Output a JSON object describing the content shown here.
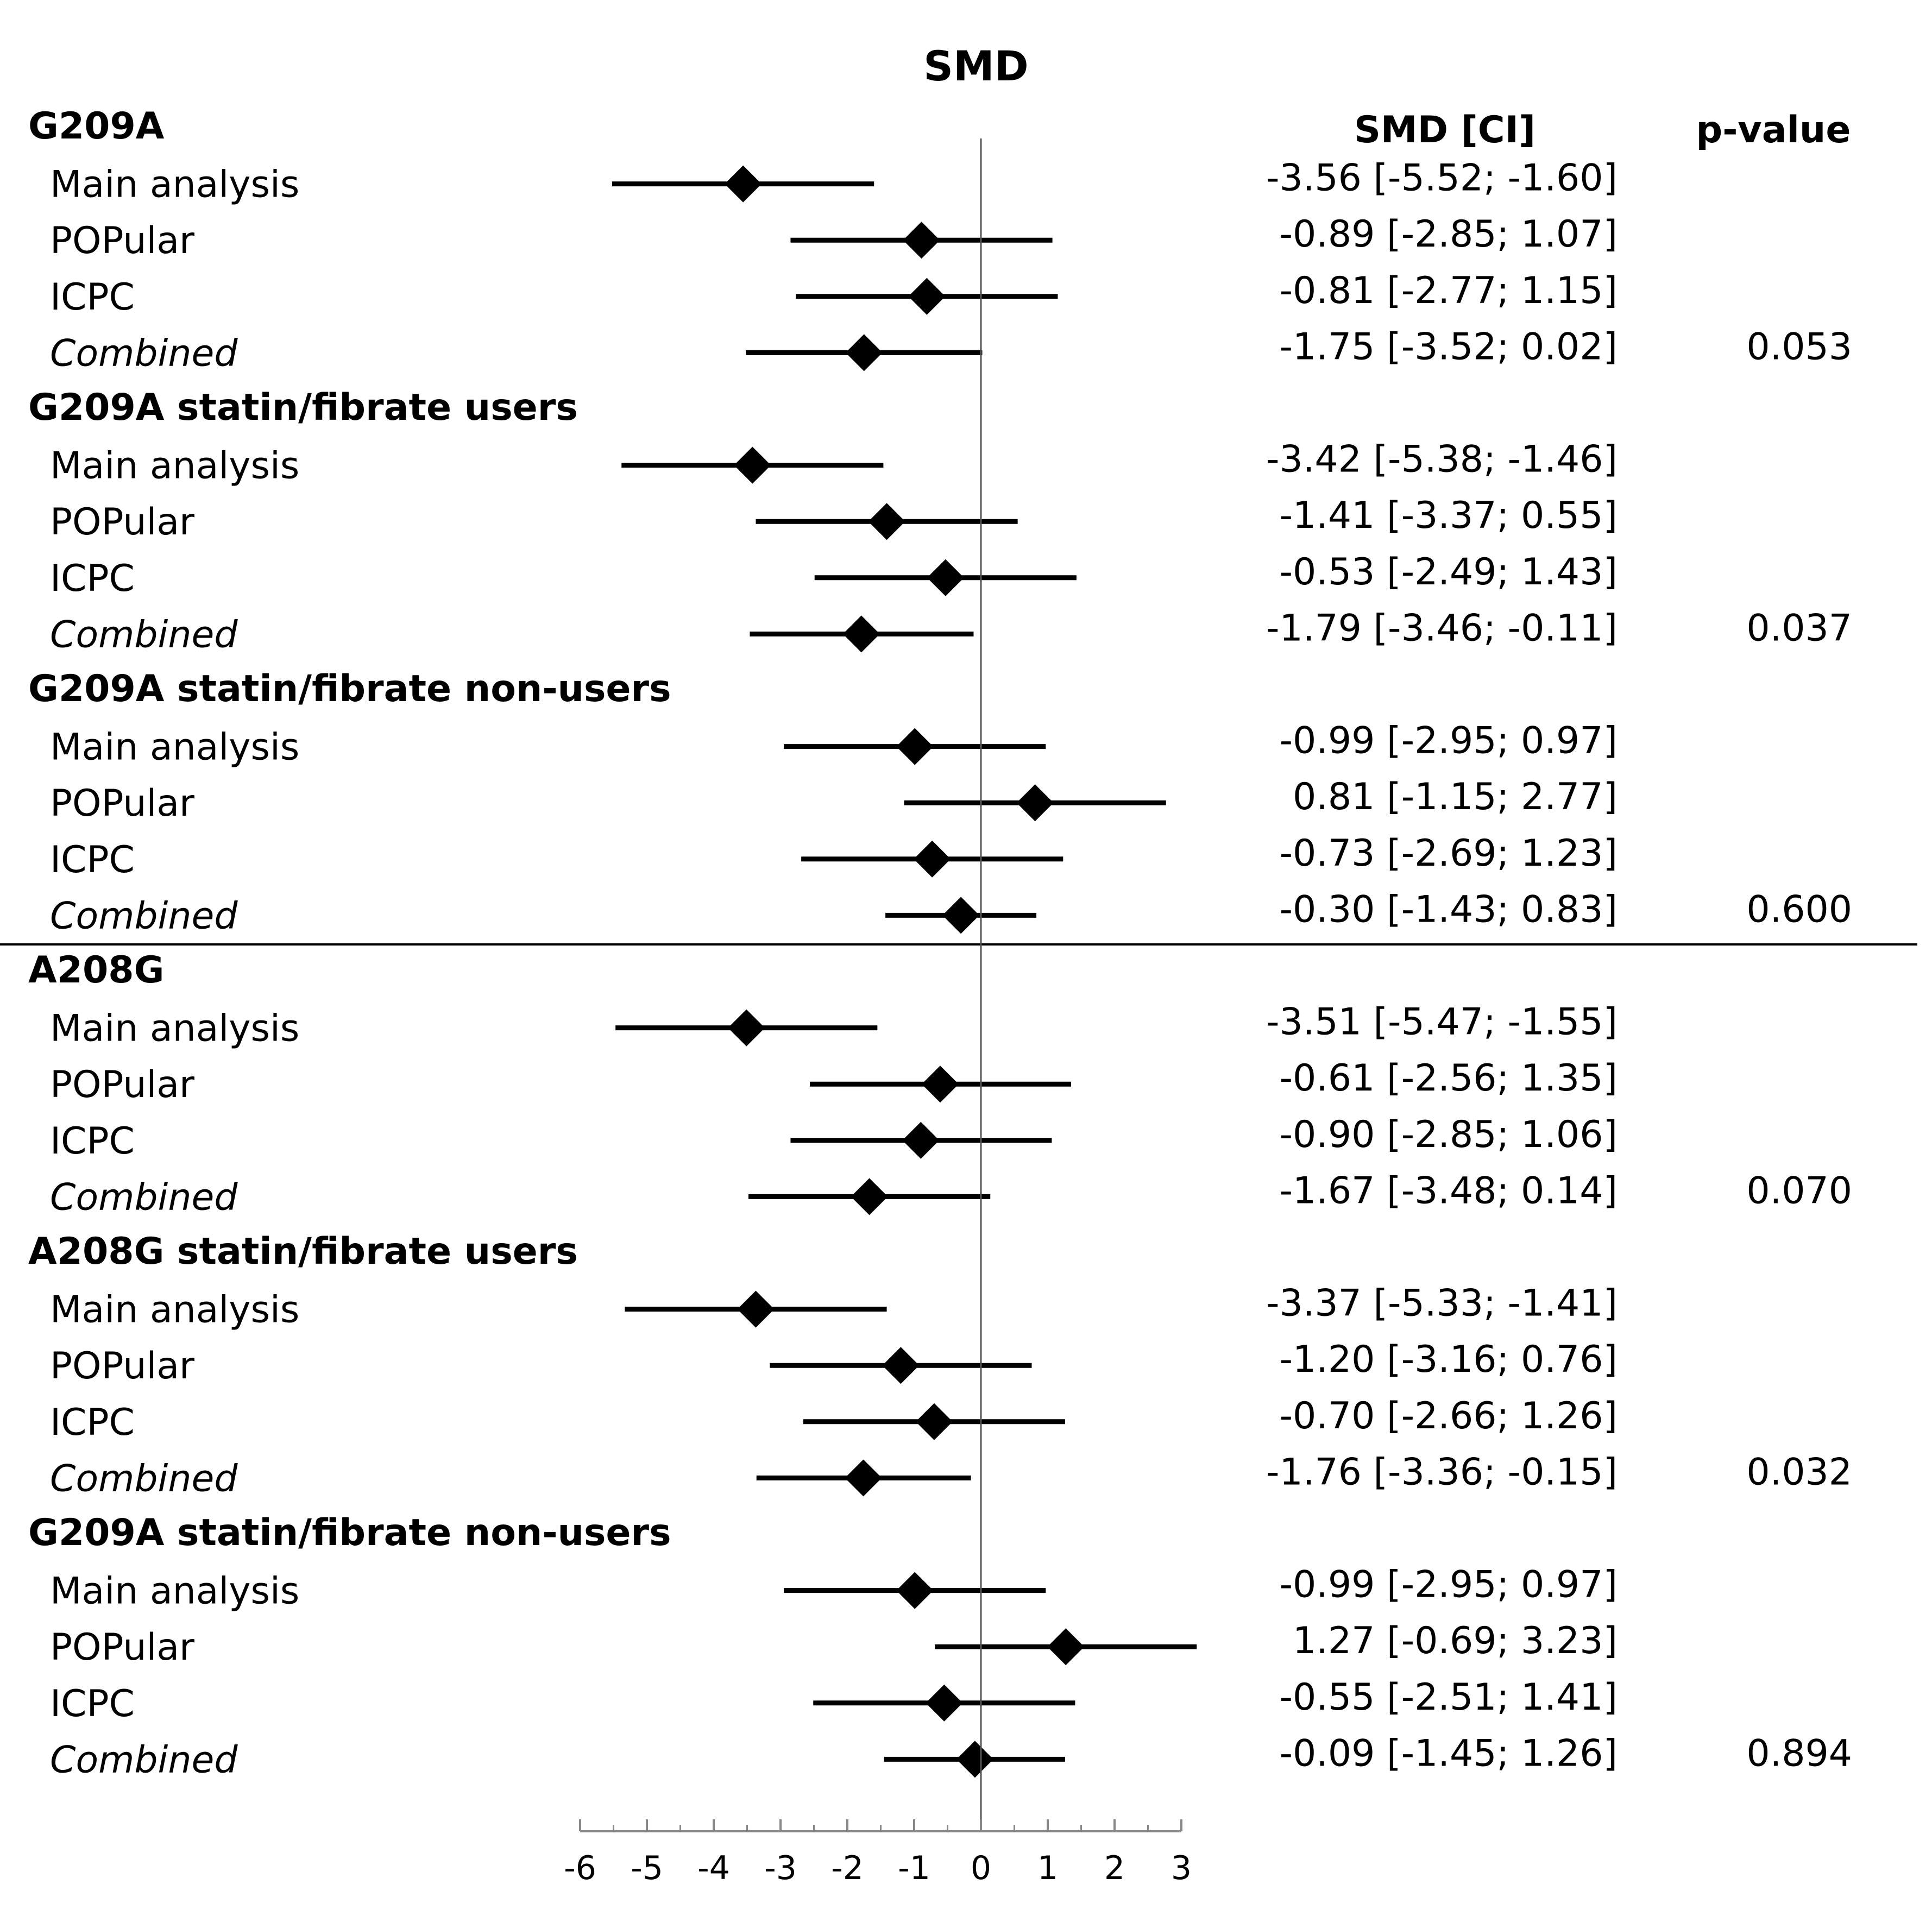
{
  "chart_data": {
    "type": "forest",
    "title": "SMD",
    "col_headers": {
      "estimate": "SMD [CI]",
      "pvalue": "p-value"
    },
    "xlim": [
      -6,
      3
    ],
    "x_ticks": [
      -6,
      -5,
      -4,
      -3,
      -2,
      -1,
      0,
      1,
      2,
      3
    ],
    "x_tick_labels": [
      "-6",
      "-5",
      "-4",
      "-3",
      "-2",
      "-1",
      "0",
      "1",
      "2",
      "3"
    ],
    "reference_line": 0,
    "groups": [
      {
        "label": "G209A",
        "pvalue": "0.053",
        "rows": [
          {
            "label": "Main analysis",
            "smd": -3.56,
            "lo": -5.52,
            "hi": -1.6,
            "text": "-3.56 [-5.52; -1.60]"
          },
          {
            "label": "POPular",
            "smd": -0.89,
            "lo": -2.85,
            "hi": 1.07,
            "text": "-0.89 [-2.85; 1.07]"
          },
          {
            "label": "ICPC",
            "smd": -0.81,
            "lo": -2.77,
            "hi": 1.15,
            "text": "-0.81 [-2.77; 1.15]"
          },
          {
            "label": "Combined",
            "italic": true,
            "smd": -1.75,
            "lo": -3.52,
            "hi": 0.02,
            "text": "-1.75 [-3.52; 0.02]"
          }
        ]
      },
      {
        "label": "G209A statin/fibrate users",
        "pvalue": "0.037",
        "rows": [
          {
            "label": "Main analysis",
            "smd": -3.42,
            "lo": -5.38,
            "hi": -1.46,
            "text": "-3.42 [-5.38; -1.46]"
          },
          {
            "label": "POPular",
            "smd": -1.41,
            "lo": -3.37,
            "hi": 0.55,
            "text": "-1.41 [-3.37; 0.55]"
          },
          {
            "label": "ICPC",
            "smd": -0.53,
            "lo": -2.49,
            "hi": 1.43,
            "text": "-0.53 [-2.49; 1.43]"
          },
          {
            "label": "Combined",
            "italic": true,
            "smd": -1.79,
            "lo": -3.46,
            "hi": -0.11,
            "text": "-1.79 [-3.46; -0.11]"
          }
        ]
      },
      {
        "label": "G209A statin/fibrate non-users",
        "pvalue": "0.600",
        "rows": [
          {
            "label": "Main analysis",
            "smd": -0.99,
            "lo": -2.95,
            "hi": 0.97,
            "text": "-0.99 [-2.95; 0.97]"
          },
          {
            "label": "POPular",
            "smd": 0.81,
            "lo": -1.15,
            "hi": 2.77,
            "text": "0.81 [-1.15; 2.77]"
          },
          {
            "label": "ICPC",
            "smd": -0.73,
            "lo": -2.69,
            "hi": 1.23,
            "text": "-0.73 [-2.69; 1.23]"
          },
          {
            "label": "Combined",
            "italic": true,
            "smd": -0.3,
            "lo": -1.43,
            "hi": 0.83,
            "text": "-0.30 [-1.43; 0.83]"
          }
        ]
      },
      {
        "label": "A208G",
        "pvalue": "0.070",
        "divider_before": true,
        "rows": [
          {
            "label": "Main analysis",
            "smd": -3.51,
            "lo": -5.47,
            "hi": -1.55,
            "text": "-3.51 [-5.47; -1.55]"
          },
          {
            "label": "POPular",
            "smd": -0.61,
            "lo": -2.56,
            "hi": 1.35,
            "text": "-0.61 [-2.56; 1.35]"
          },
          {
            "label": "ICPC",
            "smd": -0.9,
            "lo": -2.85,
            "hi": 1.06,
            "text": "-0.90 [-2.85; 1.06]"
          },
          {
            "label": "Combined",
            "italic": true,
            "smd": -1.67,
            "lo": -3.48,
            "hi": 0.14,
            "text": "-1.67 [-3.48; 0.14]"
          }
        ]
      },
      {
        "label": "A208G statin/fibrate users",
        "pvalue": "0.032",
        "rows": [
          {
            "label": "Main analysis",
            "smd": -3.37,
            "lo": -5.33,
            "hi": -1.41,
            "text": "-3.37 [-5.33; -1.41]"
          },
          {
            "label": "POPular",
            "smd": -1.2,
            "lo": -3.16,
            "hi": 0.76,
            "text": "-1.20 [-3.16; 0.76]"
          },
          {
            "label": "ICPC",
            "smd": -0.7,
            "lo": -2.66,
            "hi": 1.26,
            "text": "-0.70 [-2.66; 1.26]"
          },
          {
            "label": "Combined",
            "italic": true,
            "smd": -1.76,
            "lo": -3.36,
            "hi": -0.15,
            "text": "-1.76 [-3.36; -0.15]"
          }
        ]
      },
      {
        "label": "G209A statin/fibrate non-users",
        "pvalue": "0.894",
        "rows": [
          {
            "label": "Main analysis",
            "smd": -0.99,
            "lo": -2.95,
            "hi": 0.97,
            "text": "-0.99 [-2.95; 0.97]"
          },
          {
            "label": "POPular",
            "smd": 1.27,
            "lo": -0.69,
            "hi": 3.23,
            "text": "1.27 [-0.69; 3.23]"
          },
          {
            "label": "ICPC",
            "smd": -0.55,
            "lo": -2.51,
            "hi": 1.41,
            "text": "-0.55 [-2.51; 1.41]"
          },
          {
            "label": "Combined",
            "italic": true,
            "smd": -0.09,
            "lo": -1.45,
            "hi": 1.26,
            "text": "-0.09 [-1.45; 1.26]"
          }
        ]
      }
    ]
  }
}
